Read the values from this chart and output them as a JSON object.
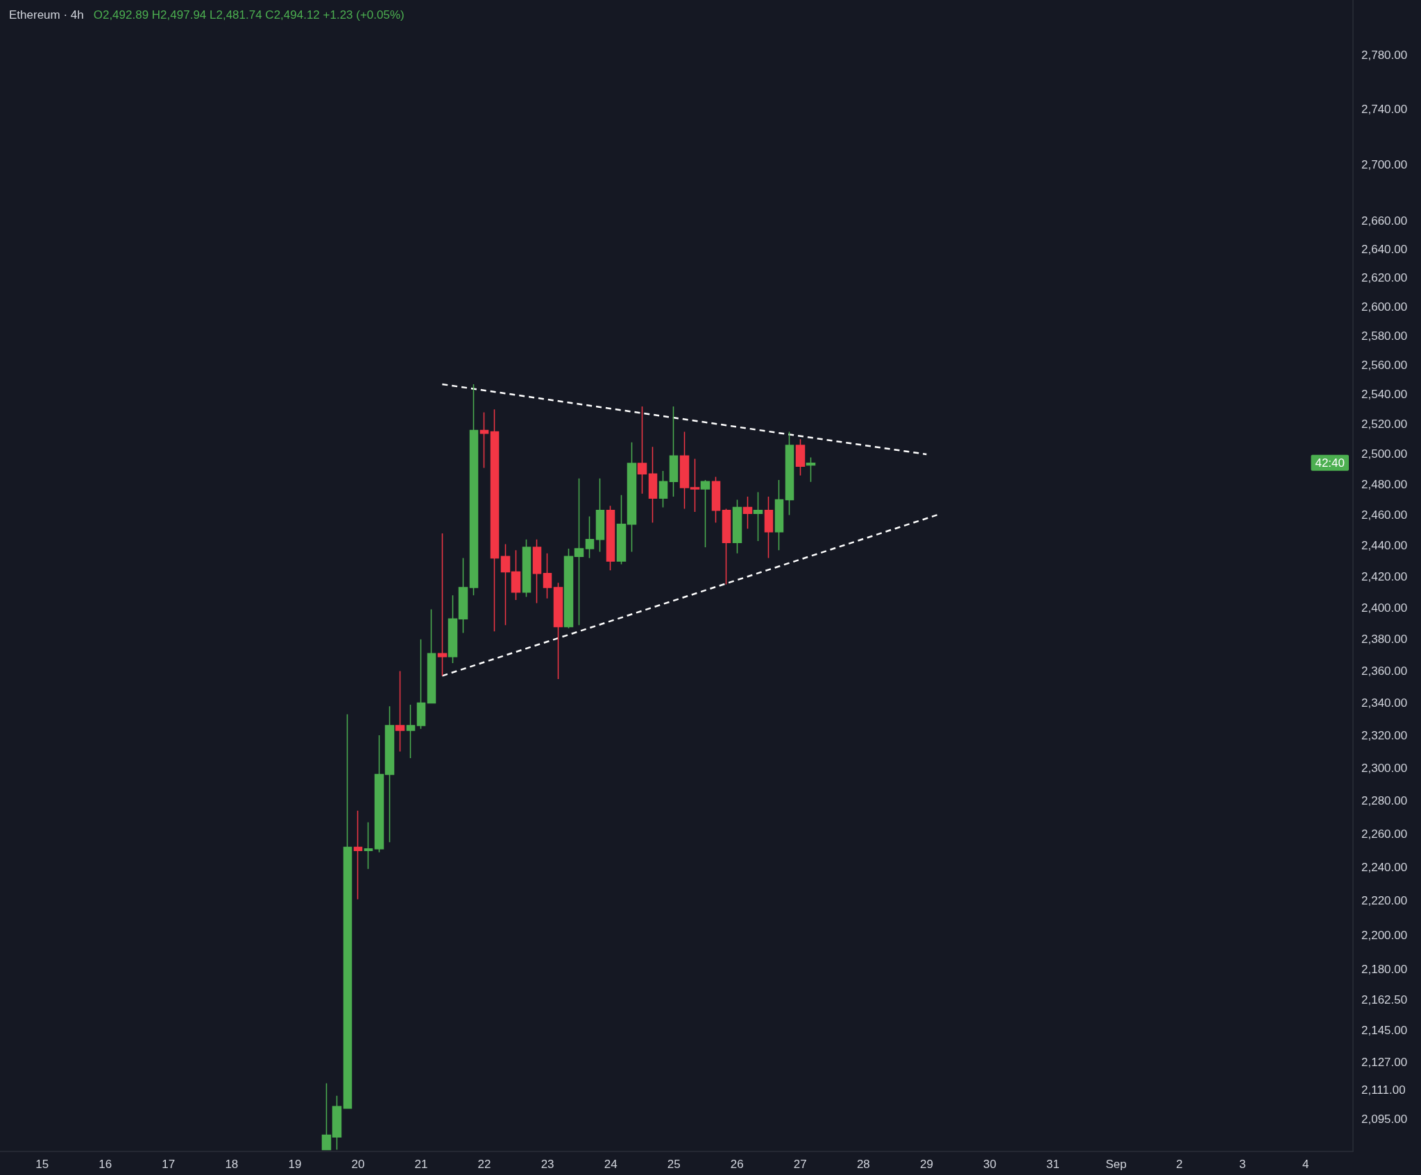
{
  "chart_data": {
    "type": "candlestick",
    "title": "Ethereum · 4h",
    "annotations": [
      "O2,492.89 H2,497.94 L2,481.74 C2,494.12 +1.23 (+0.05%)",
      "42:40"
    ],
    "x": [
      "--08-19T12:00",
      "--08-19T16:00",
      "--08-19T20:00",
      "--08-20T00:00",
      "--08-20T04:00",
      "--08-20T08:00",
      "--08-20T12:00",
      "--08-20T16:00",
      "--08-20T20:00",
      "--08-21T00:00",
      "--08-21T04:00",
      "--08-21T08:00",
      "--08-21T12:00",
      "--08-21T16:00",
      "--08-21T20:00",
      "--08-22T00:00",
      "--08-22T04:00",
      "--08-22T08:00",
      "--08-22T12:00",
      "--08-22T16:00",
      "--08-22T20:00",
      "--08-23T00:00",
      "--08-23T04:00",
      "--08-23T08:00",
      "--08-23T12:00",
      "--08-23T16:00",
      "--08-23T20:00",
      "--08-24T00:00",
      "--08-24T04:00",
      "--08-24T08:00",
      "--08-24T12:00",
      "--08-24T16:00",
      "--08-24T20:00",
      "--08-25T00:00",
      "--08-25T04:00",
      "--08-25T08:00",
      "--08-25T12:00",
      "--08-25T16:00",
      "--08-25T20:00",
      "--08-26T00:00",
      "--08-26T04:00",
      "--08-26T08:00",
      "--08-26T12:00",
      "--08-26T16:00",
      "--08-26T20:00",
      "--08-27T00:00",
      "--08-27T04:00"
    ],
    "ohlc": [
      [
        2078,
        2115,
        2078,
        2086
      ],
      [
        2085,
        2108,
        2078,
        2102
      ],
      [
        2101,
        2333,
        2101,
        2252
      ],
      [
        2252,
        2274,
        2221,
        2250
      ],
      [
        2250,
        2267,
        2239,
        2251
      ],
      [
        2251,
        2320,
        2249,
        2296
      ],
      [
        2296,
        2338,
        2255,
        2326
      ],
      [
        2326,
        2360,
        2310,
        2323
      ],
      [
        2323,
        2339,
        2306,
        2326
      ],
      [
        2326,
        2380,
        2324,
        2340
      ],
      [
        2340,
        2399,
        2340,
        2371
      ],
      [
        2371,
        2448,
        2357,
        2369
      ],
      [
        2369,
        2408,
        2365,
        2393
      ],
      [
        2393,
        2432,
        2384,
        2413
      ],
      [
        2413,
        2547,
        2408,
        2516
      ],
      [
        2516,
        2528,
        2491,
        2514
      ],
      [
        2515,
        2530,
        2385,
        2432
      ],
      [
        2433,
        2441,
        2389,
        2423
      ],
      [
        2423,
        2437,
        2405,
        2410
      ],
      [
        2410,
        2444,
        2407,
        2439
      ],
      [
        2439,
        2444,
        2403,
        2422
      ],
      [
        2422,
        2435,
        2406,
        2413
      ],
      [
        2413,
        2416,
        2355,
        2388
      ],
      [
        2388,
        2438,
        2387,
        2433
      ],
      [
        2433,
        2484,
        2389,
        2438
      ],
      [
        2438,
        2459,
        2432,
        2444
      ],
      [
        2444,
        2484,
        2436,
        2463
      ],
      [
        2463,
        2466,
        2424,
        2430
      ],
      [
        2430,
        2473,
        2428,
        2454
      ],
      [
        2454,
        2508,
        2436,
        2494
      ],
      [
        2494,
        2532,
        2474,
        2487
      ],
      [
        2487,
        2505,
        2455,
        2471
      ],
      [
        2471,
        2489,
        2465,
        2482
      ],
      [
        2482,
        2532,
        2472,
        2499
      ],
      [
        2499,
        2515,
        2464,
        2478
      ],
      [
        2478,
        2497,
        2462,
        2477
      ],
      [
        2477,
        2483,
        2439,
        2482
      ],
      [
        2482,
        2485,
        2455,
        2463
      ],
      [
        2463,
        2464,
        2415,
        2442
      ],
      [
        2442,
        2470,
        2435,
        2465
      ],
      [
        2465,
        2472,
        2451,
        2461
      ],
      [
        2461,
        2475,
        2443,
        2463
      ],
      [
        2463,
        2472,
        2432,
        2449
      ],
      [
        2449,
        2483,
        2437,
        2470
      ],
      [
        2470,
        2515,
        2460,
        2506
      ],
      [
        2506,
        2510,
        2486,
        2492
      ],
      [
        2492.89,
        2497.94,
        2481.74,
        2494.12
      ]
    ],
    "series": [
      {
        "type": "line",
        "x": [
          "--08-21T08:00",
          "--08-29T00:00"
        ],
        "values": [
          2547,
          2500
        ],
        "color": "#ffffff",
        "line_style": "dashed",
        "marker": "none"
      },
      {
        "type": "line",
        "x": [
          "--08-21T08:00",
          "--08-29T04:00"
        ],
        "values": [
          2357,
          2460
        ],
        "color": "#ffffff",
        "line_style": "dashed",
        "marker": "none"
      }
    ],
    "xlim": [
      "--08-14T08:00",
      "--09-04T18:00"
    ],
    "xticks": [
      {
        "value": "--08-15",
        "label": "15"
      },
      {
        "value": "--08-16",
        "label": "16"
      },
      {
        "value": "--08-17",
        "label": "17"
      },
      {
        "value": "--08-18",
        "label": "18"
      },
      {
        "value": "--08-19",
        "label": "19"
      },
      {
        "value": "--08-20",
        "label": "20"
      },
      {
        "value": "--08-21",
        "label": "21"
      },
      {
        "value": "--08-22",
        "label": "22"
      },
      {
        "value": "--08-23",
        "label": "23"
      },
      {
        "value": "--08-24",
        "label": "24"
      },
      {
        "value": "--08-25",
        "label": "25"
      },
      {
        "value": "--08-26",
        "label": "26"
      },
      {
        "value": "--08-27",
        "label": "27"
      },
      {
        "value": "--08-28",
        "label": "28"
      },
      {
        "value": "--08-29",
        "label": "29"
      },
      {
        "value": "--08-30",
        "label": "30"
      },
      {
        "value": "--08-31",
        "label": "31"
      },
      {
        "value": "--09-01",
        "label": "Sep"
      },
      {
        "value": "--09-02",
        "label": "2"
      },
      {
        "value": "--09-03",
        "label": "3"
      },
      {
        "value": "--09-04",
        "label": "4"
      }
    ],
    "ylim": [
      2077,
      2821
    ],
    "yticks": [
      {
        "value": 2095,
        "label": "2,095.00"
      },
      {
        "value": 2111,
        "label": "2,111.00"
      },
      {
        "value": 2127,
        "label": "2,127.00"
      },
      {
        "value": 2145,
        "label": "2,145.00"
      },
      {
        "value": 2162.5,
        "label": "2,162.50"
      },
      {
        "value": 2180,
        "label": "2,180.00"
      },
      {
        "value": 2200,
        "label": "2,200.00"
      },
      {
        "value": 2220,
        "label": "2,220.00"
      },
      {
        "value": 2240,
        "label": "2,240.00"
      },
      {
        "value": 2260,
        "label": "2,260.00"
      },
      {
        "value": 2280,
        "label": "2,280.00"
      },
      {
        "value": 2300,
        "label": "2,300.00"
      },
      {
        "value": 2320,
        "label": "2,320.00"
      },
      {
        "value": 2340,
        "label": "2,340.00"
      },
      {
        "value": 2360,
        "label": "2,360.00"
      },
      {
        "value": 2380,
        "label": "2,380.00"
      },
      {
        "value": 2400,
        "label": "2,400.00"
      },
      {
        "value": 2420,
        "label": "2,420.00"
      },
      {
        "value": 2440,
        "label": "2,440.00"
      },
      {
        "value": 2460,
        "label": "2,460.00"
      },
      {
        "value": 2480,
        "label": "2,480.00"
      },
      {
        "value": 2500,
        "label": "2,500.00"
      },
      {
        "value": 2520,
        "label": "2,520.00"
      },
      {
        "value": 2540,
        "label": "2,540.00"
      },
      {
        "value": 2560,
        "label": "2,560.00"
      },
      {
        "value": 2580,
        "label": "2,580.00"
      },
      {
        "value": 2600,
        "label": "2,600.00"
      },
      {
        "value": 2620,
        "label": "2,620.00"
      },
      {
        "value": 2640,
        "label": "2,640.00"
      },
      {
        "value": 2660,
        "label": "2,660.00"
      },
      {
        "value": 2700,
        "label": "2,700.00"
      },
      {
        "value": 2740,
        "label": "2,740.00"
      },
      {
        "value": 2780,
        "label": "2,780.00"
      }
    ],
    "log": true,
    "grid": false
  }
}
